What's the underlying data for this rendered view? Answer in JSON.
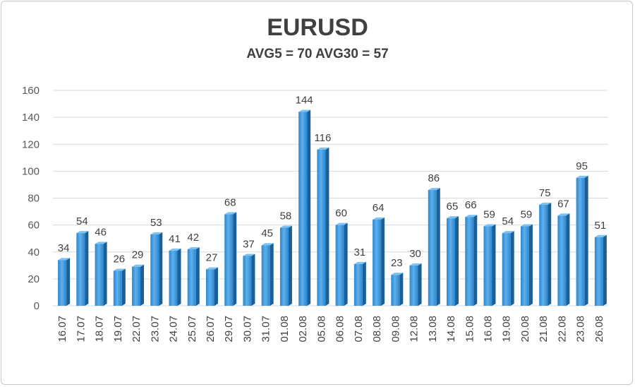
{
  "chart_data": {
    "type": "bar",
    "title": "EURUSD",
    "subtitle": "AVG5 = 70 AVG30 = 57",
    "categories": [
      "16.07",
      "17.07",
      "18.07",
      "19.07",
      "22.07",
      "23.07",
      "24.07",
      "25.07",
      "26.07",
      "29.07",
      "30.07",
      "31.07",
      "01.08",
      "02.08",
      "05.08",
      "06.08",
      "07.08",
      "08.08",
      "09.08",
      "12.08",
      "13.08",
      "14.08",
      "15.08",
      "16.08",
      "19.08",
      "20.08",
      "21.08",
      "22.08",
      "23.08",
      "26.08"
    ],
    "values": [
      34,
      54,
      46,
      26,
      29,
      53,
      41,
      42,
      27,
      68,
      37,
      45,
      58,
      144,
      116,
      60,
      31,
      64,
      23,
      30,
      86,
      65,
      66,
      59,
      54,
      59,
      75,
      67,
      95,
      51
    ],
    "yticks": [
      0,
      20,
      40,
      60,
      80,
      100,
      120,
      140,
      160
    ],
    "ylim": [
      0,
      160
    ],
    "grid": true,
    "legend": "none",
    "colors": {
      "bar_front": "#2f8fd8",
      "bar_highlight": "#5fb0ec",
      "bar_side": "#1a5f98",
      "bar_top": "#7cc2f2",
      "grid": "#d9d9d9"
    }
  }
}
